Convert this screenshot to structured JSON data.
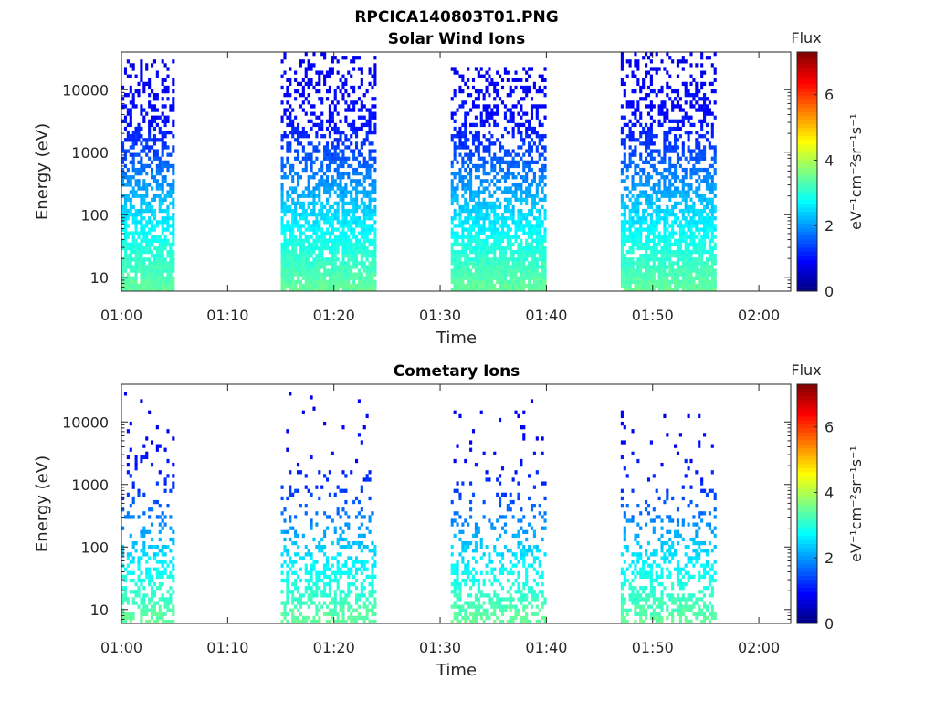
{
  "figure_title": "RPCICA140803T01.PNG",
  "chart_data": [
    {
      "type": "heatmap",
      "title": "Solar Wind Ions",
      "xlabel": "Time",
      "ylabel": "Energy (eV)",
      "y_scale": "log",
      "ylim": [
        6,
        40000
      ],
      "xlim": [
        "01:00",
        "02:03"
      ],
      "x_ticks": [
        "01:00",
        "01:10",
        "01:20",
        "01:30",
        "01:40",
        "01:50",
        "02:00"
      ],
      "y_ticks": [
        "10",
        "100",
        "1000",
        "10000"
      ],
      "colorbar": {
        "title": "Flux",
        "unit": "eV⁻¹cm⁻²sr⁻¹s⁻¹",
        "range": [
          0,
          7.3
        ],
        "ticks": [
          "0",
          "2",
          "4",
          "6"
        ],
        "colormap": "jet"
      },
      "observation_intervals": [
        {
          "start": "01:00",
          "end": "01:05",
          "max_energy_ev": 30000
        },
        {
          "start": "01:15",
          "end": "01:24",
          "max_energy_ev": 38000
        },
        {
          "start": "01:31",
          "end": "01:40",
          "max_energy_ev": 22000
        },
        {
          "start": "01:47",
          "end": "01:56",
          "max_energy_ev": 35000
        }
      ],
      "flux_by_energy_band": [
        {
          "energy_ev": 10,
          "flux": 3.3
        },
        {
          "energy_ev": 35,
          "flux": 2.9
        },
        {
          "energy_ev": 100,
          "flux": 2.5
        },
        {
          "energy_ev": 300,
          "flux": 2.0
        },
        {
          "energy_ev": 1000,
          "flux": 1.4
        },
        {
          "energy_ev": 3000,
          "flux": 1.0
        },
        {
          "energy_ev": 10000,
          "flux": 0.9
        },
        {
          "energy_ev": 30000,
          "flux": 0.8
        }
      ]
    },
    {
      "type": "heatmap",
      "title": "Cometary Ions",
      "xlabel": "Time",
      "ylabel": "Energy (eV)",
      "y_scale": "log",
      "ylim": [
        6,
        40000
      ],
      "xlim": [
        "01:00",
        "02:03"
      ],
      "x_ticks": [
        "01:00",
        "01:10",
        "01:20",
        "01:30",
        "01:40",
        "01:50",
        "02:00"
      ],
      "y_ticks": [
        "10",
        "100",
        "1000",
        "10000"
      ],
      "colorbar": {
        "title": "Flux",
        "unit": "eV⁻¹cm⁻²sr⁻¹s⁻¹",
        "range": [
          0,
          7.3
        ],
        "ticks": [
          "0",
          "2",
          "4",
          "6"
        ],
        "colormap": "jet"
      },
      "observation_intervals": [
        {
          "start": "01:00",
          "end": "01:05",
          "max_energy_ev": 30000
        },
        {
          "start": "01:15",
          "end": "01:24",
          "max_energy_ev": 28000
        },
        {
          "start": "01:31",
          "end": "01:40",
          "max_energy_ev": 24000
        },
        {
          "start": "01:47",
          "end": "01:56",
          "max_energy_ev": 14000
        }
      ],
      "flux_by_energy_band": [
        {
          "energy_ev": 10,
          "flux": 3.3
        },
        {
          "energy_ev": 30,
          "flux": 2.9
        },
        {
          "energy_ev": 100,
          "flux": 2.4
        },
        {
          "energy_ev": 300,
          "flux": 1.8
        },
        {
          "energy_ev": 1000,
          "flux": 1.2
        },
        {
          "energy_ev": 5000,
          "flux": 0.9
        },
        {
          "energy_ev": 20000,
          "flux": 0.8
        }
      ]
    }
  ]
}
